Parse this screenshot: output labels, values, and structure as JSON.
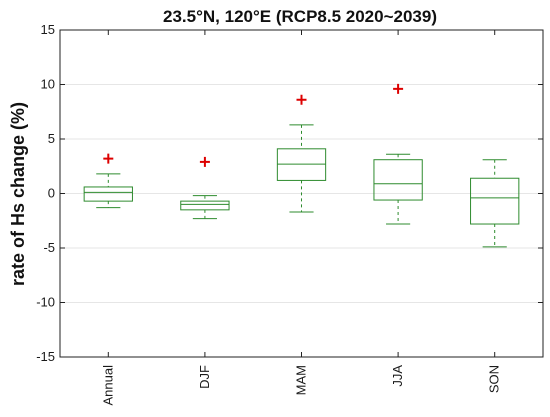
{
  "chart_data": {
    "type": "box",
    "title": "23.5°N, 120°E (RCP8.5 2020~2039)",
    "xlabel": "",
    "ylabel": "rate of Hs change (%)",
    "ylim": [
      -15,
      15
    ],
    "yticks": [
      -15,
      -10,
      -5,
      0,
      5,
      10,
      15
    ],
    "grid": "horizontal",
    "box_color": "#2e8b2e",
    "outlier_color": "#dd0000",
    "categories": [
      "Annual",
      "DJF",
      "MAM",
      "JJA",
      "SON"
    ],
    "boxes": [
      {
        "category": "Annual",
        "whisker_low": -1.3,
        "q1": -0.7,
        "median": 0.1,
        "q3": 0.6,
        "whisker_high": 1.8,
        "outliers": [
          3.2
        ]
      },
      {
        "category": "DJF",
        "whisker_low": -2.3,
        "q1": -1.5,
        "median": -1.0,
        "q3": -0.7,
        "whisker_high": -0.2,
        "outliers": [
          2.9
        ]
      },
      {
        "category": "MAM",
        "whisker_low": -1.7,
        "q1": 1.2,
        "median": 2.7,
        "q3": 4.1,
        "whisker_high": 6.3,
        "outliers": [
          8.6
        ]
      },
      {
        "category": "JJA",
        "whisker_low": -2.8,
        "q1": -0.6,
        "median": 0.9,
        "q3": 3.1,
        "whisker_high": 3.6,
        "outliers": [
          9.6
        ]
      },
      {
        "category": "SON",
        "whisker_low": -4.9,
        "q1": -2.8,
        "median": -0.4,
        "q3": 1.4,
        "whisker_high": 3.1,
        "outliers": []
      }
    ]
  }
}
